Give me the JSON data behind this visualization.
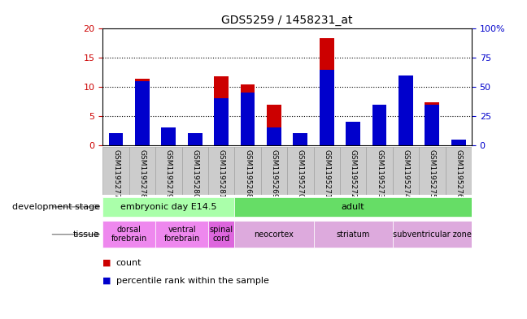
{
  "title": "GDS5259 / 1458231_at",
  "samples": [
    "GSM1195277",
    "GSM1195278",
    "GSM1195279",
    "GSM1195280",
    "GSM1195281",
    "GSM1195268",
    "GSM1195269",
    "GSM1195270",
    "GSM1195271",
    "GSM1195272",
    "GSM1195273",
    "GSM1195274",
    "GSM1195275",
    "GSM1195276"
  ],
  "count_values": [
    0.5,
    11.4,
    1.2,
    0.4,
    11.8,
    10.4,
    7.0,
    1.1,
    18.4,
    2.5,
    4.0,
    10.0,
    7.3,
    0.5
  ],
  "percentile_values": [
    10,
    55,
    15,
    10,
    40,
    45,
    15,
    10,
    65,
    20,
    35,
    60,
    35,
    5
  ],
  "count_color": "#cc0000",
  "percentile_color": "#0000cc",
  "ylim_left": [
    0,
    20
  ],
  "ylim_right": [
    0,
    100
  ],
  "yticks_left": [
    0,
    5,
    10,
    15,
    20
  ],
  "yticks_right": [
    0,
    25,
    50,
    75,
    100
  ],
  "ytick_labels_right": [
    "0",
    "25",
    "50",
    "75",
    "100%"
  ],
  "bg_color": "#ffffff",
  "bar_width": 0.55,
  "dev_stage_groups": [
    {
      "text": "embryonic day E14.5",
      "start": 0,
      "end": 4,
      "color": "#aaffaa"
    },
    {
      "text": "adult",
      "start": 5,
      "end": 13,
      "color": "#66dd66"
    }
  ],
  "tissue_groups": [
    {
      "text": "dorsal\nforebrain",
      "start": 0,
      "end": 1,
      "color": "#ee88ee"
    },
    {
      "text": "ventral\nforebrain",
      "start": 2,
      "end": 3,
      "color": "#ee88ee"
    },
    {
      "text": "spinal\ncord",
      "start": 4,
      "end": 4,
      "color": "#dd66dd"
    },
    {
      "text": "neocortex",
      "start": 5,
      "end": 7,
      "color": "#ddaadd"
    },
    {
      "text": "striatum",
      "start": 8,
      "end": 10,
      "color": "#ddaadd"
    },
    {
      "text": "subventricular zone",
      "start": 11,
      "end": 13,
      "color": "#ddaadd"
    }
  ],
  "xticklabel_bg": "#cccccc",
  "legend_items": [
    {
      "label": "count",
      "color": "#cc0000"
    },
    {
      "label": "percentile rank within the sample",
      "color": "#0000cc"
    }
  ]
}
